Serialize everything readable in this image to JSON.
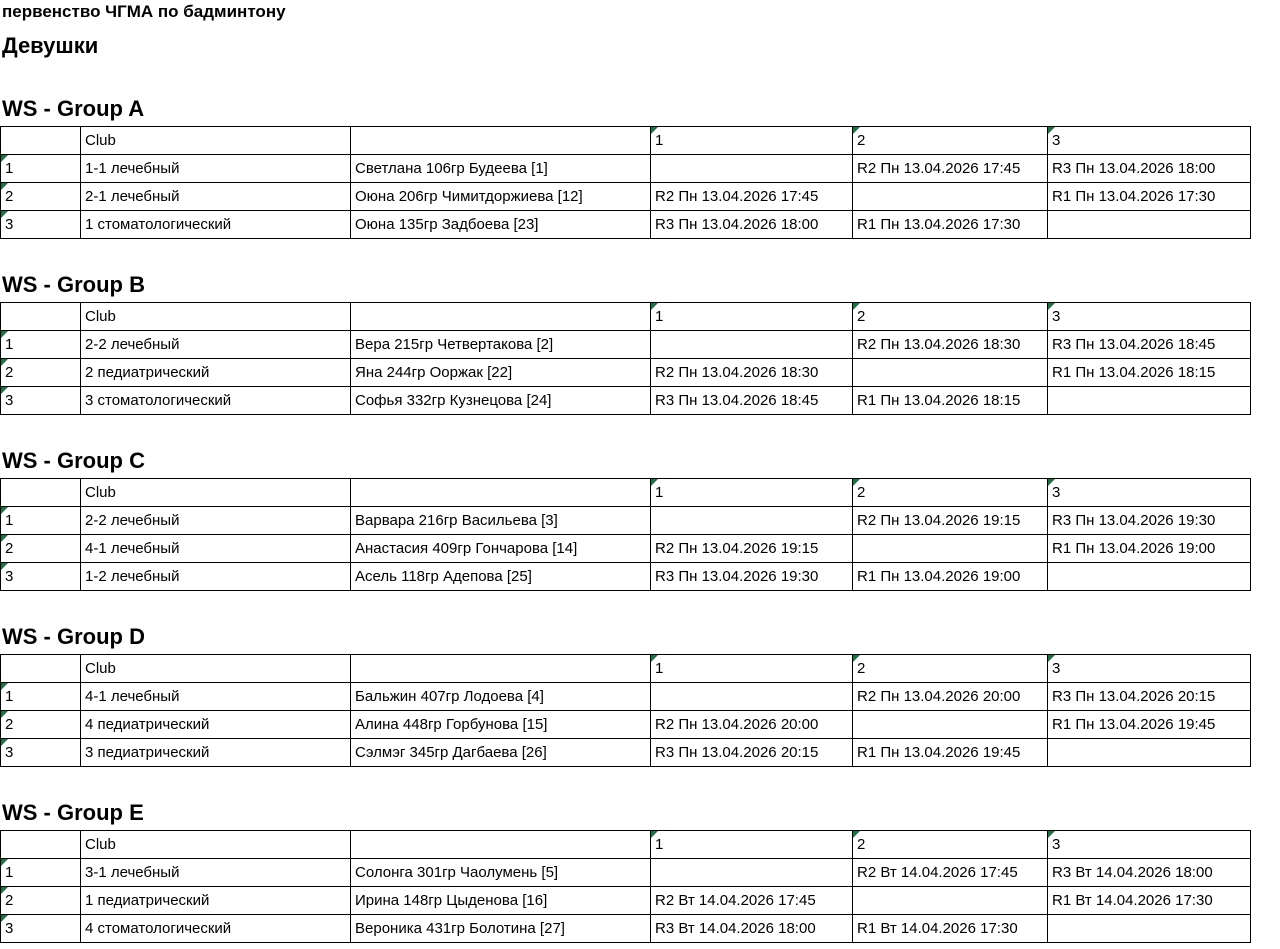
{
  "page": {
    "title": "первенство ЧГМА по бадминтону",
    "subtitle": "Девушки"
  },
  "table_header": {
    "num": "",
    "club": "Club",
    "player": "",
    "col1": "1",
    "col2": "2",
    "col3": "3"
  },
  "icons": {
    "corner_flag": "green triangle cell flag (top-left corner marker)"
  },
  "colors": {
    "background": "#ffffff",
    "text": "#000000",
    "border": "#000000",
    "flag_green": "#1e7145"
  },
  "groups": [
    {
      "heading": "WS - Group A",
      "rows": [
        {
          "num": "1",
          "club": "1-1 лечебный",
          "player": "Светлана 106гр Будеева [1]",
          "c1": "",
          "c2": "R2 Пн 13.04.2026 17:45",
          "c3": "R3 Пн 13.04.2026 18:00"
        },
        {
          "num": "2",
          "club": "2-1 лечебный",
          "player": "Оюна 206гр Чимитдоржиева [12]",
          "c1": "R2 Пн 13.04.2026 17:45",
          "c2": "",
          "c3": "R1 Пн 13.04.2026 17:30"
        },
        {
          "num": "3",
          "club": "1 стоматологический",
          "player": "Оюна 135гр Задбоева [23]",
          "c1": "R3 Пн 13.04.2026 18:00",
          "c2": "R1 Пн 13.04.2026 17:30",
          "c3": ""
        }
      ]
    },
    {
      "heading": "WS - Group B",
      "rows": [
        {
          "num": "1",
          "club": "2-2 лечебный",
          "player": "Вера 215гр Четвертакова [2]",
          "c1": "",
          "c2": "R2 Пн 13.04.2026 18:30",
          "c3": "R3 Пн 13.04.2026 18:45"
        },
        {
          "num": "2",
          "club": "2 педиатрический",
          "player": "Яна 244гр Ооржак [22]",
          "c1": "R2 Пн 13.04.2026 18:30",
          "c2": "",
          "c3": "R1 Пн 13.04.2026 18:15"
        },
        {
          "num": "3",
          "club": "3 стоматологический",
          "player": "Софья 332гр Кузнецова [24]",
          "c1": "R3 Пн 13.04.2026 18:45",
          "c2": "R1 Пн 13.04.2026 18:15",
          "c3": ""
        }
      ]
    },
    {
      "heading": "WS - Group C",
      "rows": [
        {
          "num": "1",
          "club": "2-2 лечебный",
          "player": "Варвара 216гр Васильева [3]",
          "c1": "",
          "c2": "R2 Пн 13.04.2026 19:15",
          "c3": "R3 Пн 13.04.2026 19:30"
        },
        {
          "num": "2",
          "club": "4-1 лечебный",
          "player": "Анастасия 409гр Гончарова [14]",
          "c1": "R2 Пн 13.04.2026 19:15",
          "c2": "",
          "c3": "R1 Пн 13.04.2026 19:00"
        },
        {
          "num": "3",
          "club": "1-2 лечебный",
          "player": "Асель 118гр Адепова [25]",
          "c1": "R3 Пн 13.04.2026 19:30",
          "c2": "R1 Пн 13.04.2026 19:00",
          "c3": ""
        }
      ]
    },
    {
      "heading": "WS - Group D",
      "rows": [
        {
          "num": "1",
          "club": "4-1 лечебный",
          "player": "Бальжин 407гр Лодоева [4]",
          "c1": "",
          "c2": "R2 Пн 13.04.2026 20:00",
          "c3": "R3 Пн 13.04.2026 20:15"
        },
        {
          "num": "2",
          "club": "4 педиатрический",
          "player": "Алина 448гр Горбунова [15]",
          "c1": "R2 Пн 13.04.2026 20:00",
          "c2": "",
          "c3": "R1 Пн 13.04.2026 19:45"
        },
        {
          "num": "3",
          "club": "3 педиатрический",
          "player": "Сэлмэг 345гр Дагбаева [26]",
          "c1": "R3 Пн 13.04.2026 20:15",
          "c2": "R1 Пн 13.04.2026 19:45",
          "c3": ""
        }
      ]
    },
    {
      "heading": "WS - Group E",
      "rows": [
        {
          "num": "1",
          "club": "3-1 лечебный",
          "player": "Солонга 301гр Чаолумень [5]",
          "c1": "",
          "c2": "R2 Вт 14.04.2026 17:45",
          "c3": "R3 Вт 14.04.2026 18:00"
        },
        {
          "num": "2",
          "club": "1 педиатрический",
          "player": "Ирина 148гр Цыденова [16]",
          "c1": "R2 Вт 14.04.2026 17:45",
          "c2": "",
          "c3": "R1 Вт 14.04.2026 17:30"
        },
        {
          "num": "3",
          "club": "4 стоматологический",
          "player": "Вероника 431гр Болотина [27]",
          "c1": "R3 Вт 14.04.2026 18:00",
          "c2": "R1 Вт 14.04.2026 17:30",
          "c3": ""
        }
      ]
    }
  ]
}
